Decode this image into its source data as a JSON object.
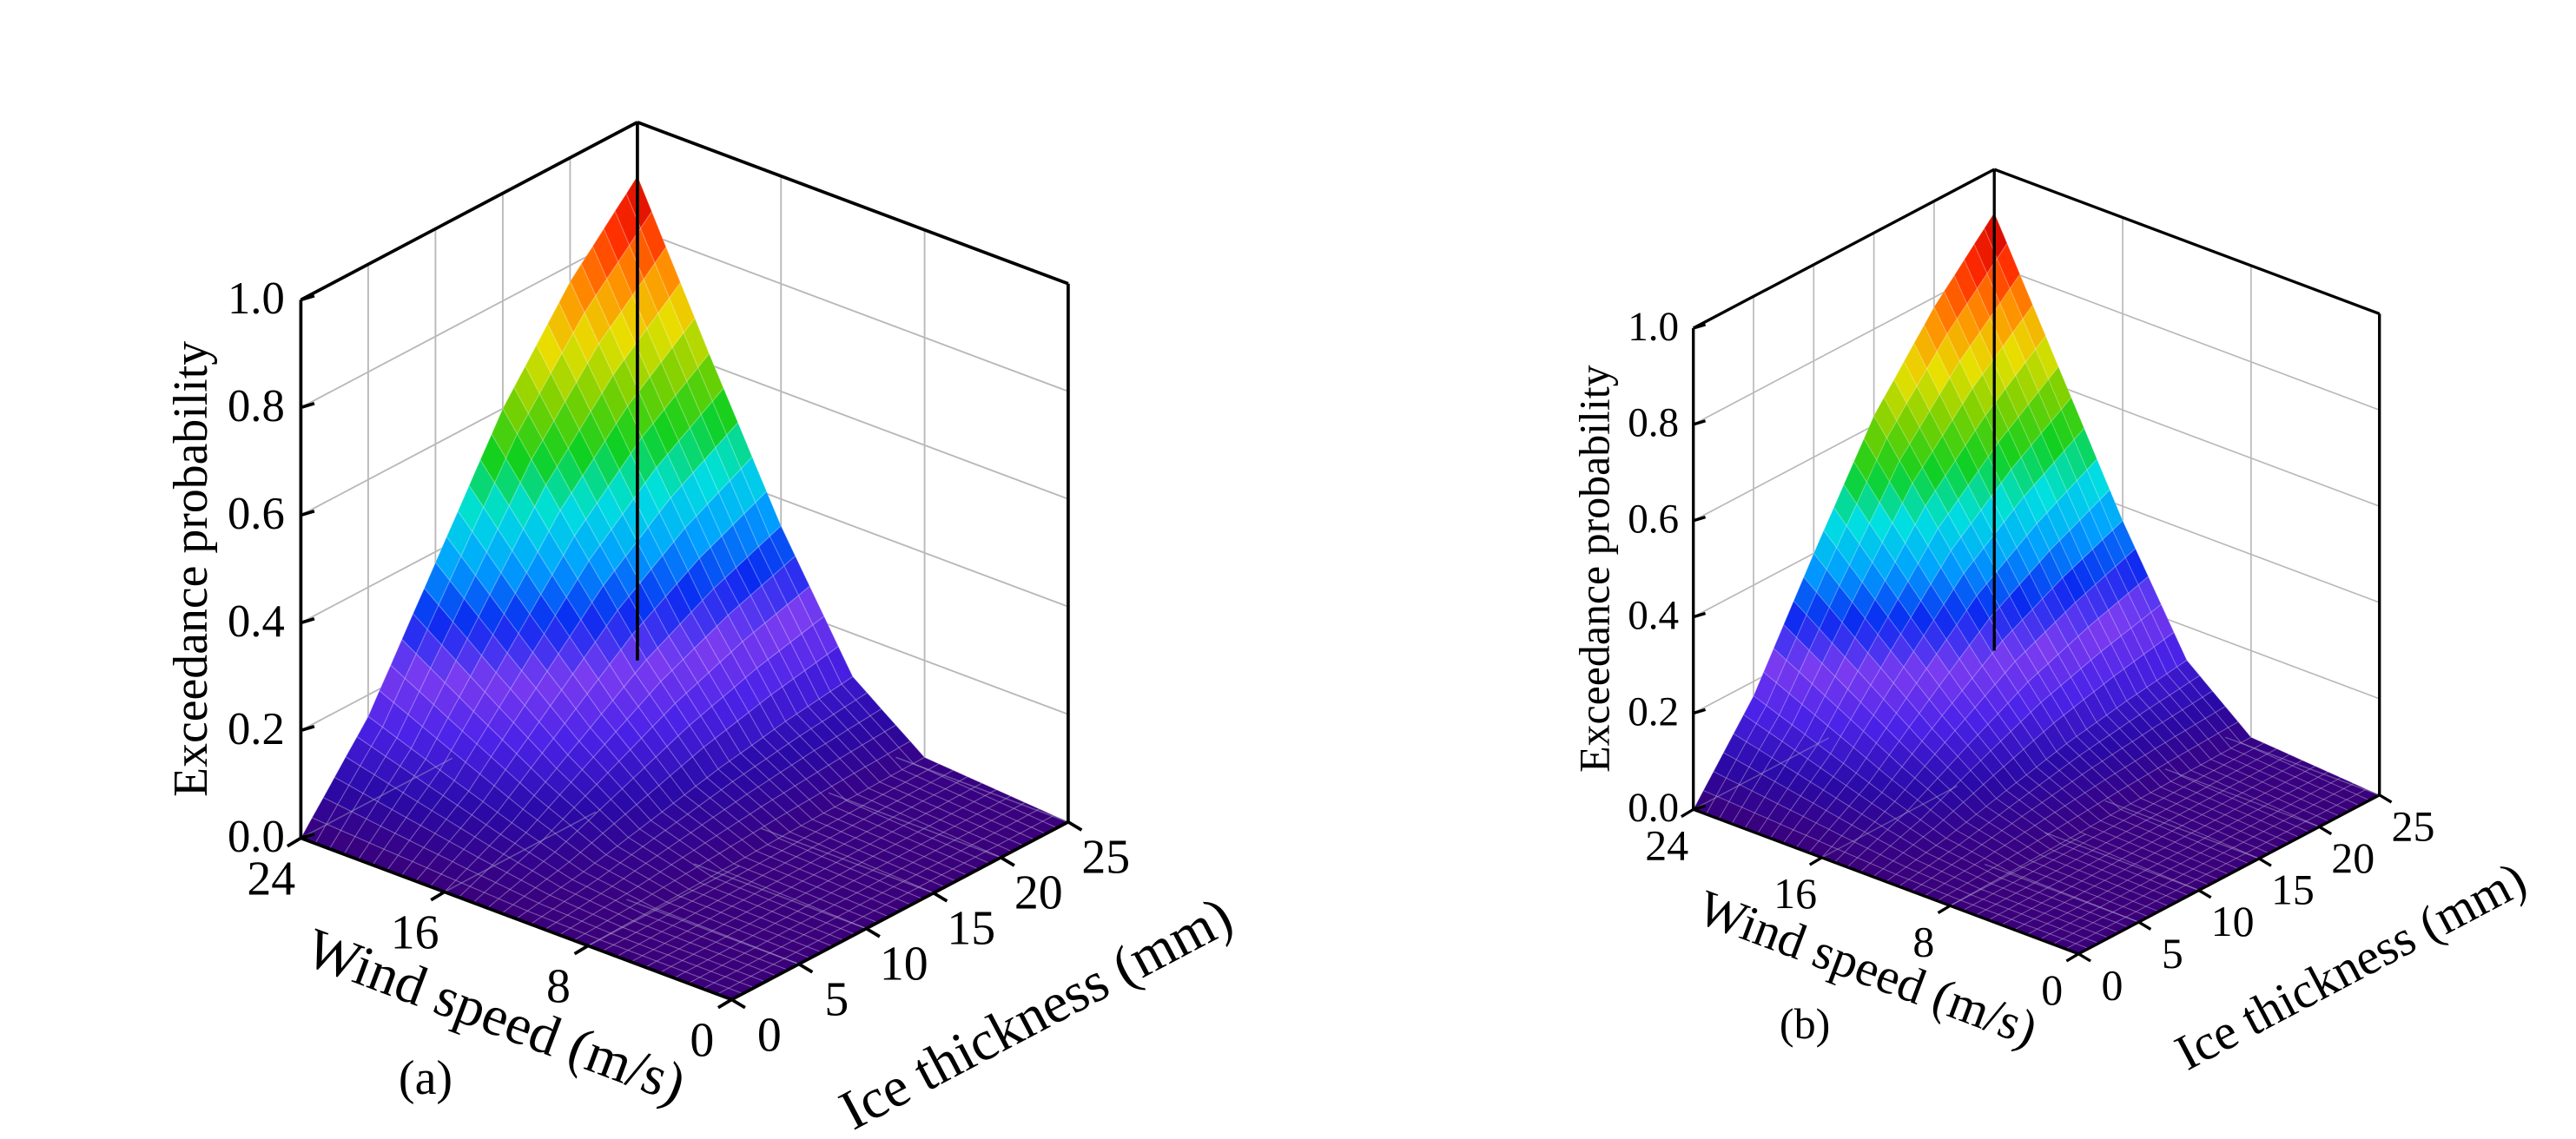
{
  "chart_data": [
    {
      "type": "surface3d",
      "panel_label": "(a)",
      "xlabel": "Wind speed (m/s)",
      "ylabel": "Ice thickness (mm)",
      "zlabel": "Exceedance probability",
      "x_ticks": [
        "0",
        "8",
        "16",
        "24"
      ],
      "y_ticks": [
        "0",
        "5",
        "10",
        "15",
        "20",
        "25"
      ],
      "z_ticks": [
        "0.0",
        "0.2",
        "0.4",
        "0.6",
        "0.8",
        "1.0"
      ],
      "xlim": [
        0,
        24
      ],
      "ylim": [
        0,
        25
      ],
      "zlim": [
        0,
        1
      ],
      "grid": true,
      "colormap": [
        "#3a007a",
        "#2a0aa8",
        "#4a22e8",
        "#7b3cf0",
        "#0a2af0",
        "#00a0ff",
        "#00e0e0",
        "#10d020",
        "#7ad000",
        "#e8e000",
        "#ff9000",
        "#ff2a00",
        "#c80000"
      ],
      "corner_values": {
        "x0_y0": 0.0,
        "x24_y0": 0.0,
        "x0_y25": 0.0,
        "x24_y25": 0.9
      },
      "edge_x24": [
        [
          0,
          0.0
        ],
        [
          5,
          0.16
        ],
        [
          10,
          0.38
        ],
        [
          15,
          0.6
        ],
        [
          20,
          0.77
        ],
        [
          25,
          0.9
        ]
      ],
      "edge_y25": [
        [
          0,
          0.0
        ],
        [
          8,
          0.02
        ],
        [
          12,
          0.12
        ],
        [
          16,
          0.35
        ],
        [
          20,
          0.62
        ],
        [
          24,
          0.9
        ]
      ]
    },
    {
      "type": "surface3d",
      "panel_label": "(b)",
      "xlabel": "Wind speed (m/s)",
      "ylabel": "Ice thickness (mm)",
      "zlabel": "Exceedance probability",
      "x_ticks": [
        "0",
        "8",
        "16",
        "24"
      ],
      "y_ticks": [
        "0",
        "5",
        "10",
        "15",
        "20",
        "25"
      ],
      "z_ticks": [
        "0.0",
        "0.2",
        "0.4",
        "0.6",
        "0.8",
        "1.0"
      ],
      "xlim": [
        0,
        24
      ],
      "ylim": [
        0,
        25
      ],
      "zlim": [
        0,
        1
      ],
      "grid": true,
      "colormap": [
        "#3a007a",
        "#2a0aa8",
        "#4a22e8",
        "#7b3cf0",
        "#0a2af0",
        "#00a0ff",
        "#00e0e0",
        "#10d020",
        "#7ad000",
        "#e8e000",
        "#ff9000",
        "#ff2a00",
        "#c80000"
      ],
      "corner_values": {
        "x0_y0": 0.0,
        "x24_y0": 0.0,
        "x0_y25": 0.0,
        "x24_y25": 0.91
      },
      "edge_x24": [
        [
          0,
          0.0
        ],
        [
          5,
          0.17
        ],
        [
          10,
          0.4
        ],
        [
          15,
          0.62
        ],
        [
          20,
          0.78
        ],
        [
          25,
          0.91
        ]
      ],
      "edge_y25": [
        [
          0,
          0.0
        ],
        [
          8,
          0.02
        ],
        [
          12,
          0.13
        ],
        [
          16,
          0.37
        ],
        [
          20,
          0.64
        ],
        [
          24,
          0.91
        ]
      ]
    }
  ]
}
